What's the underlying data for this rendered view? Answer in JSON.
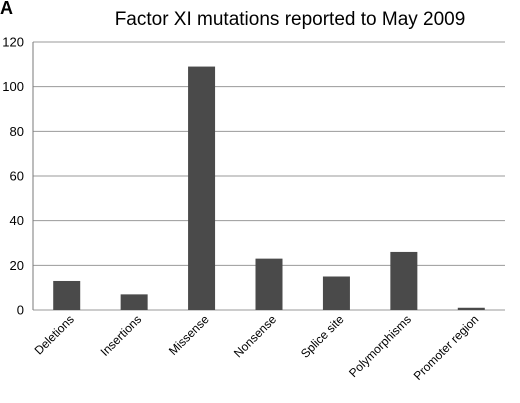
{
  "panel_label": "A",
  "chart_data": {
    "type": "bar",
    "title": "Factor XI mutations reported to May 2009",
    "xlabel": "",
    "ylabel": "",
    "categories": [
      "Deletions",
      "Insertions",
      "Missense",
      "Nonsense",
      "Splice site",
      "Polymorphisms",
      "Promoter region"
    ],
    "values": [
      13,
      7,
      109,
      23,
      15,
      26,
      1
    ],
    "ylim": [
      0,
      120
    ],
    "yticks": [
      0,
      20,
      40,
      60,
      80,
      100,
      120
    ],
    "grid": true,
    "bar_color": "#4a4a4a",
    "grid_color": "#9a9a9a"
  }
}
